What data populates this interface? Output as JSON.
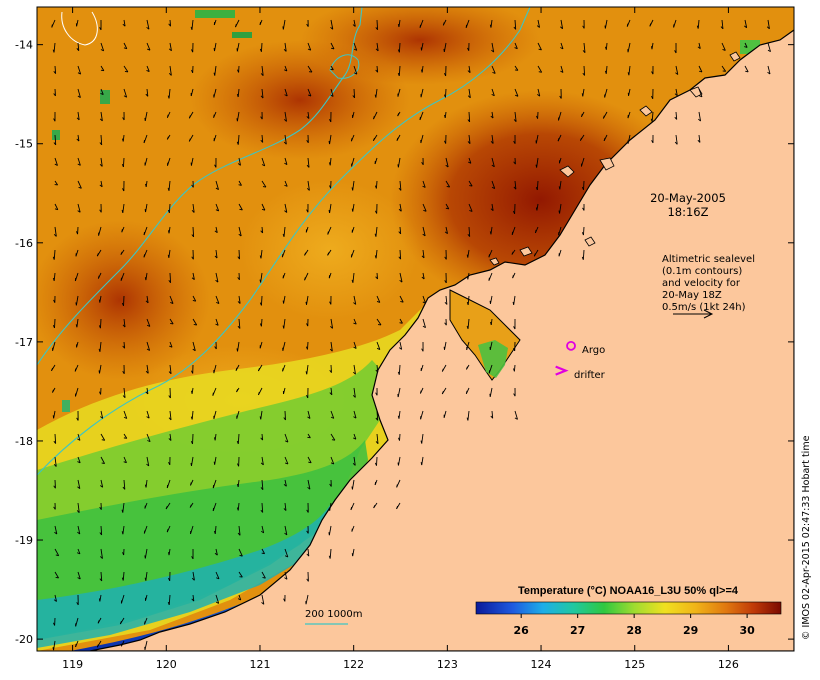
{
  "map": {
    "date_line1": "20-May-2005",
    "date_line2": "18:16Z",
    "altimetry_lines": [
      "Altimetric sealevel",
      "(0.1m contours)",
      "and velocity for",
      "20-May 18Z",
      "0.5m/s (1kt 24h)"
    ],
    "argo_label": "Argo",
    "drifter_label": "drifter",
    "bathymetry_label": "200  1000m",
    "legend_title": "Temperature (°C) NOAA16_L3U 50% ql>=4",
    "colorbar_ticks": [
      "26",
      "27",
      "28",
      "29",
      "30"
    ],
    "colorbar_values": [
      26,
      27,
      28,
      29,
      30
    ],
    "colorbar_range": [
      25.2,
      30.6
    ],
    "credit": "© IMOS 02-Apr-2015 02:47:33 Hobart time",
    "lat_ticks": [
      "-14",
      "-15",
      "-16",
      "-17",
      "-18",
      "-19",
      "-20"
    ],
    "lat_values": [
      -14,
      -15,
      -16,
      -17,
      -18,
      -19,
      -20
    ],
    "lon_ticks": [
      "119",
      "120",
      "121",
      "122",
      "123",
      "124",
      "125",
      "126"
    ],
    "lon_values": [
      119,
      120,
      121,
      122,
      123,
      124,
      125,
      126
    ],
    "lat_range": [
      -13.62,
      -20.12
    ],
    "lon_range": [
      118.62,
      126.7
    ],
    "argo_position": {
      "lon": 124.32,
      "lat": -17.04
    },
    "drifter_position": {
      "lon": 124.22,
      "lat": -17.29
    },
    "colors": {
      "land": "#fcc79c",
      "warm": "#e08c12",
      "hot": "#9a1800",
      "cool_green": "#8cd43a",
      "cold": "#1434c0",
      "contour": "#3cc6c4",
      "argo": "#e000e0"
    }
  }
}
